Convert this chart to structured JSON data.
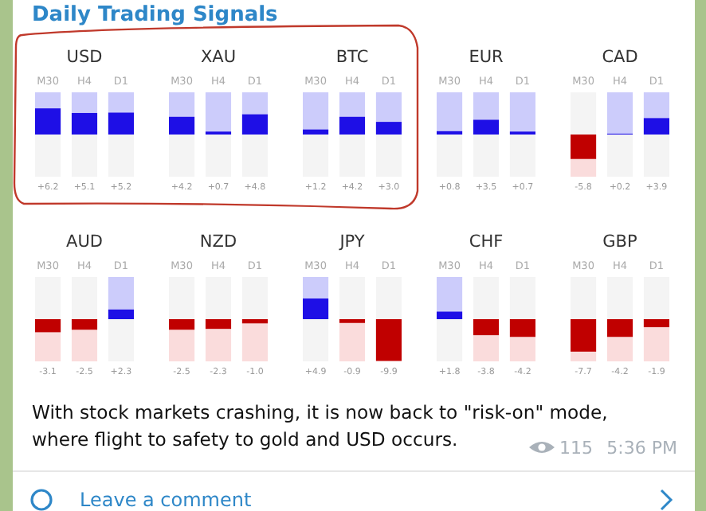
{
  "chart_data": [
    {
      "type": "bar",
      "title": "USD",
      "categories": [
        "M30",
        "H4",
        "D1"
      ],
      "values": [
        6.2,
        5.1,
        5.2
      ],
      "colors": [
        "#1e0fe6",
        "#1e0fe6",
        "#1e0fe6"
      ],
      "value_labels": [
        "+6.2",
        "+5.1",
        "+5.2"
      ],
      "ylim": [
        -10,
        10
      ],
      "tick_labels": "x"
    },
    {
      "type": "bar",
      "title": "XAU",
      "categories": [
        "M30",
        "H4",
        "D1"
      ],
      "values": [
        4.2,
        0.7,
        4.8
      ],
      "colors": [
        "#1e0fe6",
        "#1e0fe6",
        "#1e0fe6"
      ],
      "value_labels": [
        "+4.2",
        "+0.7",
        "+4.8"
      ],
      "ylim": [
        -10,
        10
      ],
      "tick_labels": "x"
    },
    {
      "type": "bar",
      "title": "BTC",
      "categories": [
        "M30",
        "H4",
        "D1"
      ],
      "values": [
        1.2,
        4.2,
        3.0
      ],
      "colors": [
        "#1e0fe6",
        "#1e0fe6",
        "#1e0fe6"
      ],
      "value_labels": [
        "+1.2",
        "+4.2",
        "+3.0"
      ],
      "ylim": [
        -10,
        10
      ],
      "tick_labels": "x"
    },
    {
      "type": "bar",
      "title": "EUR",
      "categories": [
        "M30",
        "H4",
        "D1"
      ],
      "values": [
        0.8,
        3.5,
        0.7
      ],
      "colors": [
        "#1e0fe6",
        "#1e0fe6",
        "#1e0fe6"
      ],
      "value_labels": [
        "+0.8",
        "+3.5",
        "+0.7"
      ],
      "ylim": [
        -10,
        10
      ],
      "tick_labels": "x"
    },
    {
      "type": "bar",
      "title": "CAD",
      "categories": [
        "M30",
        "H4",
        "D1"
      ],
      "values": [
        -5.8,
        0.2,
        3.9
      ],
      "colors": [
        "#c00000",
        "#1e0fe6",
        "#1e0fe6"
      ],
      "value_labels": [
        "-5.8",
        "+0.2",
        "+3.9"
      ],
      "ylim": [
        -10,
        10
      ],
      "tick_labels": "x"
    },
    {
      "type": "bar",
      "title": "AUD",
      "categories": [
        "M30",
        "H4",
        "D1"
      ],
      "values": [
        -3.1,
        -2.5,
        2.3
      ],
      "colors": [
        "#c00000",
        "#c00000",
        "#1e0fe6"
      ],
      "value_labels": [
        "-3.1",
        "-2.5",
        "+2.3"
      ],
      "ylim": [
        -10,
        10
      ],
      "tick_labels": "x"
    },
    {
      "type": "bar",
      "title": "NZD",
      "categories": [
        "M30",
        "H4",
        "D1"
      ],
      "values": [
        -2.5,
        -2.3,
        -1.0
      ],
      "colors": [
        "#c00000",
        "#c00000",
        "#c00000"
      ],
      "value_labels": [
        "-2.5",
        "-2.3",
        "-1.0"
      ],
      "ylim": [
        -10,
        10
      ],
      "tick_labels": "x"
    },
    {
      "type": "bar",
      "title": "JPY",
      "categories": [
        "M30",
        "H4",
        "D1"
      ],
      "values": [
        4.9,
        -0.9,
        -9.9
      ],
      "colors": [
        "#1e0fe6",
        "#c00000",
        "#c00000"
      ],
      "value_labels": [
        "+4.9",
        "-0.9",
        "-9.9"
      ],
      "ylim": [
        -10,
        10
      ],
      "tick_labels": "x"
    },
    {
      "type": "bar",
      "title": "CHF",
      "categories": [
        "M30",
        "H4",
        "D1"
      ],
      "values": [
        1.8,
        -3.8,
        -4.2
      ],
      "colors": [
        "#1e0fe6",
        "#c00000",
        "#c00000"
      ],
      "value_labels": [
        "+1.8",
        "-3.8",
        "-4.2"
      ],
      "ylim": [
        -10,
        10
      ],
      "tick_labels": "x"
    },
    {
      "type": "bar",
      "title": "GBP",
      "categories": [
        "M30",
        "H4",
        "D1"
      ],
      "values": [
        -7.7,
        -4.2,
        -1.9
      ],
      "colors": [
        "#c00000",
        "#c00000",
        "#c00000"
      ],
      "value_labels": [
        "-7.7",
        "-4.2",
        "-1.9"
      ],
      "ylim": [
        -10,
        10
      ],
      "tick_labels": "x"
    },
    {
      "type": "other",
      "title": "Daily Trading Signals",
      "annotations": [
        "With stock markets crashing, it is now back to \"risk-on\" mode, where flight to safety to gold and USD occurs.",
        "115",
        "5:36 PM",
        "Leave a comment"
      ]
    }
  ]
}
